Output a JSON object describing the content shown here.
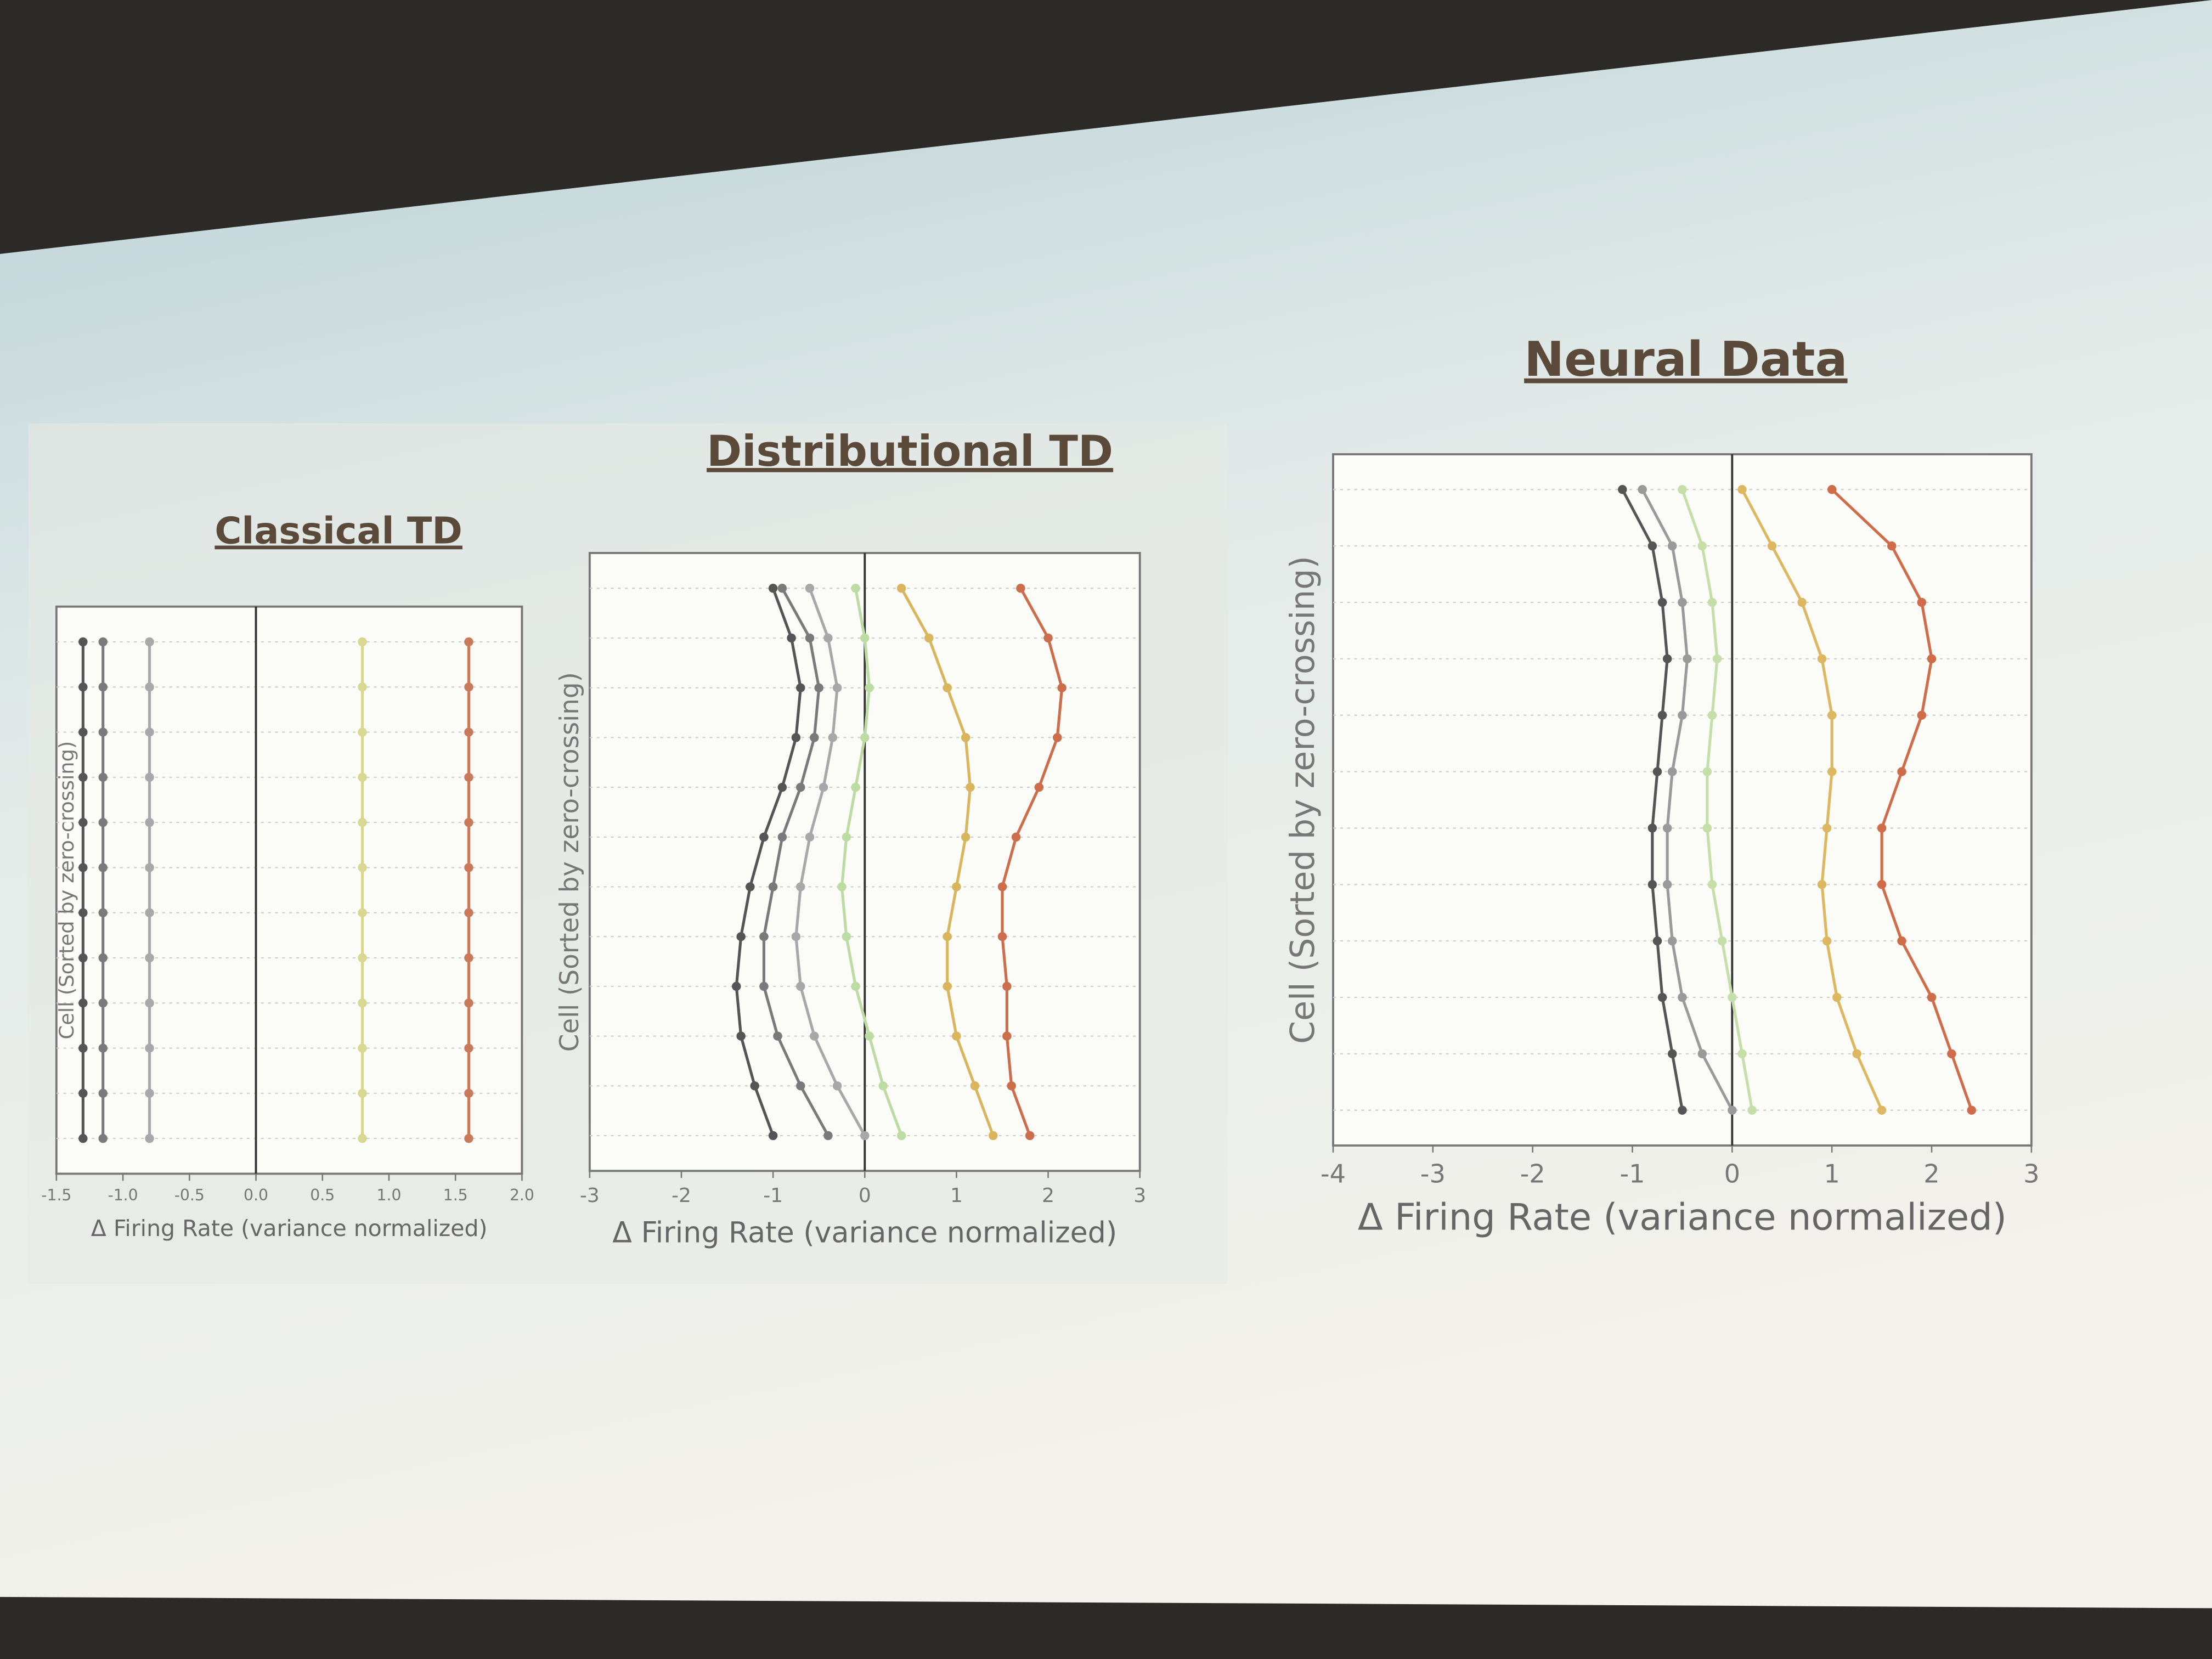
{
  "chart_data": [
    {
      "type": "scatter",
      "title": "Classical TD",
      "ylabel": "Cell (Sorted by zero-crossing)",
      "xlabel": "Δ Firing Rate (variance normalized)",
      "xlim": [
        -1.5,
        2.0
      ],
      "xticks": [
        {
          "value": -1.5,
          "label": "-1.5"
        },
        {
          "value": -1.0,
          "label": "-1.0"
        },
        {
          "value": -0.5,
          "label": "-0.5"
        },
        {
          "value": 0.0,
          "label": "0.0"
        },
        {
          "value": 0.5,
          "label": "0.5"
        },
        {
          "value": 1.0,
          "label": "1.0"
        },
        {
          "value": 1.5,
          "label": "1.5"
        },
        {
          "value": 2.0,
          "label": "2.0"
        }
      ],
      "refline": 0,
      "series": [
        {
          "color": "#555555",
          "values": [
            -1.3,
            -1.3,
            -1.3,
            -1.3,
            -1.3,
            -1.3,
            -1.3,
            -1.3,
            -1.3,
            -1.3,
            -1.3,
            -1.3
          ]
        },
        {
          "color": "#7a7a7a",
          "values": [
            -1.15,
            -1.15,
            -1.15,
            -1.15,
            -1.15,
            -1.15,
            -1.15,
            -1.15,
            -1.15,
            -1.15,
            -1.15,
            -1.15
          ]
        },
        {
          "color": "#a8a8a8",
          "values": [
            -0.8,
            -0.8,
            -0.8,
            -0.8,
            -0.8,
            -0.8,
            -0.8,
            -0.8,
            -0.8,
            -0.8,
            -0.8,
            -0.8
          ]
        },
        {
          "color": "#d8d890",
          "values": [
            0.8,
            0.8,
            0.8,
            0.8,
            0.8,
            0.8,
            0.8,
            0.8,
            0.8,
            0.8,
            0.8,
            0.8
          ]
        },
        {
          "color": "#c97a5a",
          "values": [
            1.6,
            1.6,
            1.6,
            1.6,
            1.6,
            1.6,
            1.6,
            1.6,
            1.6,
            1.6,
            1.6,
            1.6
          ]
        }
      ]
    },
    {
      "type": "scatter",
      "title": "Distributional TD",
      "ylabel": "Cell (Sorted by zero-crossing)",
      "xlabel": "Δ Firing Rate (variance normalized)",
      "xlim": [
        -3,
        3
      ],
      "xticks": [
        -3,
        -2,
        -1,
        0,
        1,
        2,
        3
      ],
      "refline": 0,
      "series": [
        {
          "color": "#555555",
          "values": [
            -1.0,
            -0.8,
            -0.7,
            -0.75,
            -0.9,
            -1.1,
            -1.25,
            -1.35,
            -1.4,
            -1.35,
            -1.2,
            -1.0
          ]
        },
        {
          "color": "#7a7a7a",
          "values": [
            -0.9,
            -0.6,
            -0.5,
            -0.55,
            -0.7,
            -0.9,
            -1.0,
            -1.1,
            -1.1,
            -0.95,
            -0.7,
            -0.4
          ]
        },
        {
          "color": "#a8a8a8",
          "values": [
            -0.6,
            -0.4,
            -0.3,
            -0.35,
            -0.45,
            -0.6,
            -0.7,
            -0.75,
            -0.7,
            -0.55,
            -0.3,
            0.0
          ]
        },
        {
          "color": "#bcdca4",
          "values": [
            -0.1,
            0.0,
            0.05,
            0.0,
            -0.1,
            -0.2,
            -0.25,
            -0.2,
            -0.1,
            0.05,
            0.2,
            0.4
          ]
        },
        {
          "color": "#d9b65e",
          "values": [
            0.4,
            0.7,
            0.9,
            1.1,
            1.15,
            1.1,
            1.0,
            0.9,
            0.9,
            1.0,
            1.2,
            1.4
          ]
        },
        {
          "color": "#cc6e4c",
          "values": [
            1.7,
            2.0,
            2.15,
            2.1,
            1.9,
            1.65,
            1.5,
            1.5,
            1.55,
            1.55,
            1.6,
            1.8
          ]
        }
      ]
    },
    {
      "type": "scatter",
      "title": "Neural Data",
      "ylabel": "Cell (Sorted by zero-crossing)",
      "xlabel": "Δ Firing Rate (variance normalized)",
      "xlim": [
        -4,
        3
      ],
      "xticks": [
        -4,
        -3,
        -2,
        -1,
        0,
        1,
        2,
        3
      ],
      "refline": 0,
      "series": [
        {
          "color": "#555555",
          "values": [
            -1.1,
            -0.8,
            -0.7,
            -0.65,
            -0.7,
            -0.75,
            -0.8,
            -0.8,
            -0.75,
            -0.7,
            -0.6,
            -0.5
          ]
        },
        {
          "color": "#9a9a9a",
          "values": [
            -0.9,
            -0.6,
            -0.5,
            -0.45,
            -0.5,
            -0.6,
            -0.65,
            -0.65,
            -0.6,
            -0.5,
            -0.3,
            0.0
          ]
        },
        {
          "color": "#c4e0a8",
          "values": [
            -0.5,
            -0.3,
            -0.2,
            -0.15,
            -0.2,
            -0.25,
            -0.25,
            -0.2,
            -0.1,
            0.0,
            0.1,
            0.2
          ]
        },
        {
          "color": "#ddb860",
          "values": [
            0.1,
            0.4,
            0.7,
            0.9,
            1.0,
            1.0,
            0.95,
            0.9,
            0.95,
            1.05,
            1.25,
            1.5
          ]
        },
        {
          "color": "#cf6c4a",
          "values": [
            1.0,
            1.6,
            1.9,
            2.0,
            1.9,
            1.7,
            1.5,
            1.5,
            1.7,
            2.0,
            2.2,
            2.4
          ]
        }
      ]
    }
  ]
}
